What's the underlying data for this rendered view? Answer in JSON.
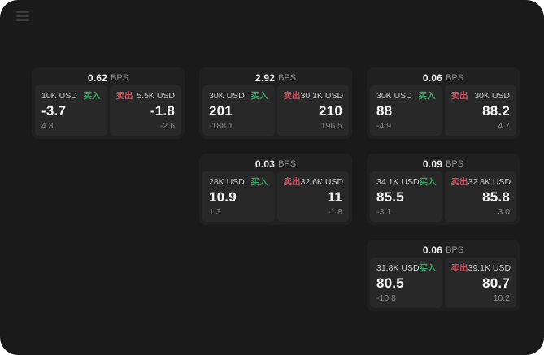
{
  "labels": {
    "bps_unit": "BPS",
    "buy": "买入",
    "sell": "卖出"
  },
  "colors": {
    "app_bg": "#1a1a1a",
    "card_bg": "#202020",
    "panel_bg": "#282828",
    "buy_green": "#3ca368",
    "sell_red": "#c95060"
  },
  "cards": [
    {
      "bps": "0.62",
      "buy": {
        "amount": "10K USD",
        "price": "-3.7",
        "change": "4.3"
      },
      "sell": {
        "amount": "5.5K USD",
        "price": "-1.8",
        "change": "-2.6"
      }
    },
    {
      "bps": "2.92",
      "buy": {
        "amount": "30K USD",
        "price": "201",
        "change": "-188.1"
      },
      "sell": {
        "amount": "30.1K USD",
        "price": "210",
        "change": "196.5"
      }
    },
    {
      "bps": "0.06",
      "buy": {
        "amount": "30K USD",
        "price": "88",
        "change": "-4.9"
      },
      "sell": {
        "amount": "30K USD",
        "price": "88.2",
        "change": "4.7"
      }
    },
    {
      "bps": "0.03",
      "buy": {
        "amount": "28K USD",
        "price": "10.9",
        "change": "1.3"
      },
      "sell": {
        "amount": "32.6K USD",
        "price": "11",
        "change": "-1.8"
      }
    },
    {
      "bps": "0.09",
      "buy": {
        "amount": "34.1K USD",
        "price": "85.5",
        "change": "-3.1"
      },
      "sell": {
        "amount": "32.8K USD",
        "price": "85.8",
        "change": "3.0"
      }
    },
    {
      "bps": "0.06",
      "buy": {
        "amount": "31.8K USD",
        "price": "80.5",
        "change": "-10.8"
      },
      "sell": {
        "amount": "39.1K USD",
        "price": "80.7",
        "change": "10.2"
      }
    }
  ]
}
